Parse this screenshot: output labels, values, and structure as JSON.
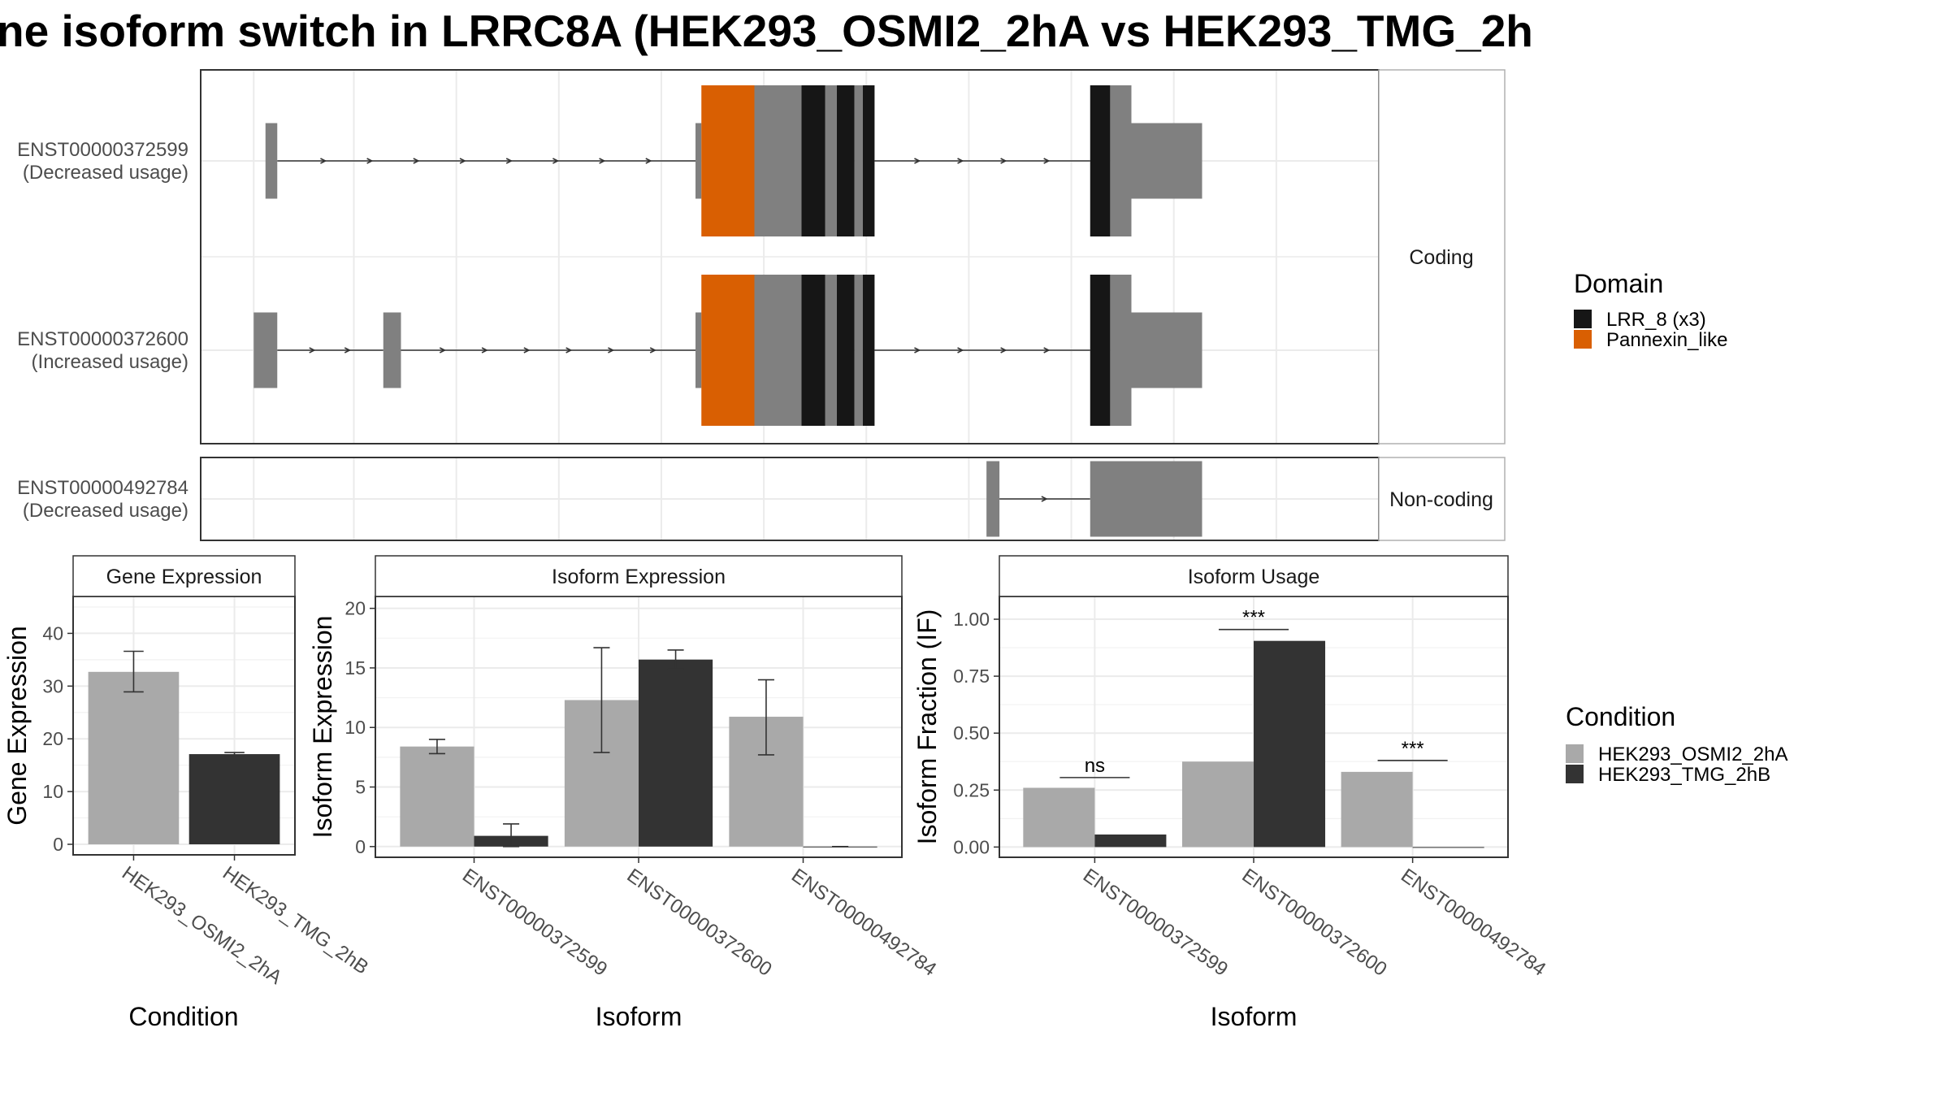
{
  "title": "ne isoform switch in LRRC8A (HEK293_OSMI2_2hA vs HEK293_TMG_2h",
  "structure": {
    "facets": [
      {
        "label": "Coding",
        "transcripts": [
          {
            "id": "ENST00000372599",
            "status": "(Decreased usage)",
            "exons": [
              [
                0.055,
                0.065
              ],
              [
                0.42,
                0.425
              ],
              [
                0.425,
                0.47
              ],
              [
                0.47,
                0.51
              ],
              [
                0.51,
                0.53
              ],
              [
                0.53,
                0.54
              ],
              [
                0.54,
                0.555
              ],
              [
                0.555,
                0.562
              ],
              [
                0.562,
                0.572
              ],
              [
                0.755,
                0.772
              ],
              [
                0.772,
                0.79
              ],
              [
                0.79,
                0.85
              ]
            ],
            "tall": [
              false,
              false,
              true,
              true,
              true,
              true,
              true,
              true,
              true,
              true,
              true,
              false
            ],
            "colors": [
              "#808080",
              "#808080",
              "#d95f02",
              "#808080",
              "#161616",
              "#808080",
              "#161616",
              "#808080",
              "#161616",
              "#161616",
              "#808080",
              "#808080"
            ]
          },
          {
            "id": "ENST00000372600",
            "status": "(Increased usage)",
            "exons": [
              [
                0.045,
                0.065
              ],
              [
                0.155,
                0.17
              ],
              [
                0.42,
                0.425
              ],
              [
                0.425,
                0.47
              ],
              [
                0.47,
                0.51
              ],
              [
                0.51,
                0.53
              ],
              [
                0.53,
                0.54
              ],
              [
                0.54,
                0.555
              ],
              [
                0.555,
                0.562
              ],
              [
                0.562,
                0.572
              ],
              [
                0.755,
                0.772
              ],
              [
                0.772,
                0.79
              ],
              [
                0.79,
                0.85
              ]
            ],
            "tall": [
              false,
              false,
              false,
              true,
              true,
              true,
              true,
              true,
              true,
              true,
              true,
              true,
              false
            ],
            "colors": [
              "#808080",
              "#808080",
              "#808080",
              "#d95f02",
              "#808080",
              "#161616",
              "#808080",
              "#161616",
              "#808080",
              "#161616",
              "#161616",
              "#808080",
              "#808080"
            ]
          }
        ]
      },
      {
        "label": "Non-coding",
        "transcripts": [
          {
            "id": "ENST00000492784",
            "status": "(Decreased usage)",
            "exons": [
              [
                0.667,
                0.678
              ],
              [
                0.755,
                0.85
              ]
            ],
            "tall": [
              false,
              false
            ],
            "colors": [
              "#808080",
              "#808080"
            ]
          }
        ]
      }
    ],
    "legend": {
      "title": "Domain",
      "items": [
        {
          "label": "LRR_8 (x3)",
          "color": "#161616"
        },
        {
          "label": "Pannexin_like",
          "color": "#d95f02"
        }
      ]
    }
  },
  "chart_data": [
    {
      "type": "bar",
      "title": "Gene Expression",
      "xlabel": "Condition",
      "ylabel": "Gene Expression",
      "categories": [
        "HEK293_OSMI2_2hA",
        "HEK293_TMG_2hB"
      ],
      "series": [
        {
          "values": [
            32.7,
            17.1
          ],
          "err_low": [
            28.9,
            16.8
          ],
          "err_high": [
            36.6,
            17.4
          ]
        }
      ],
      "ylim": [
        -2,
        47
      ],
      "yticks": [
        0,
        10,
        20,
        30,
        40
      ],
      "yticklabels": [
        "0",
        "10",
        "20",
        "30",
        "40"
      ]
    },
    {
      "type": "bar",
      "title": "Isoform Expression",
      "xlabel": "Isoform",
      "ylabel": "Isoform Expression",
      "categories": [
        "ENST00000372599",
        "ENST00000372600",
        "ENST00000492784"
      ],
      "series": [
        {
          "name": "HEK293_OSMI2_2hA",
          "values": [
            8.4,
            12.3,
            10.9
          ],
          "err_low": [
            7.8,
            7.9,
            7.7
          ],
          "err_high": [
            9.0,
            16.7,
            14.0
          ]
        },
        {
          "name": "HEK293_TMG_2hB",
          "values": [
            0.9,
            15.7,
            0.0
          ],
          "err_low": [
            0.0,
            14.9,
            0.0
          ],
          "err_high": [
            1.9,
            16.5,
            0.0
          ]
        }
      ],
      "ylim": [
        -0.9,
        21.0
      ],
      "yticks": [
        0,
        5,
        10,
        15,
        20
      ],
      "yticklabels": [
        "0",
        "5",
        "10",
        "15",
        "20"
      ]
    },
    {
      "type": "bar",
      "title": "Isoform Usage",
      "xlabel": "Isoform",
      "ylabel": "Isoform Fraction (IF)",
      "categories": [
        "ENST00000372599",
        "ENST00000372600",
        "ENST00000492784"
      ],
      "series": [
        {
          "name": "HEK293_OSMI2_2hA",
          "values": [
            0.26,
            0.375,
            0.33
          ]
        },
        {
          "name": "HEK293_TMG_2hB",
          "values": [
            0.055,
            0.905,
            0.0
          ]
        }
      ],
      "significance": [
        "ns",
        "***",
        "***"
      ],
      "sig_y": [
        0.305,
        0.955,
        0.38
      ],
      "ylim": [
        -0.045,
        1.1
      ],
      "yticks": [
        0,
        0.25,
        0.5,
        0.75,
        1.0
      ],
      "yticklabels": [
        "0.00",
        "0.25",
        "0.50",
        "0.75",
        "1.00"
      ]
    }
  ],
  "condition_legend": {
    "title": "Condition",
    "items": [
      {
        "label": "HEK293_OSMI2_2hA",
        "color": "#a9a9a9"
      },
      {
        "label": "HEK293_TMG_2hB",
        "color": "#333333"
      }
    ]
  }
}
